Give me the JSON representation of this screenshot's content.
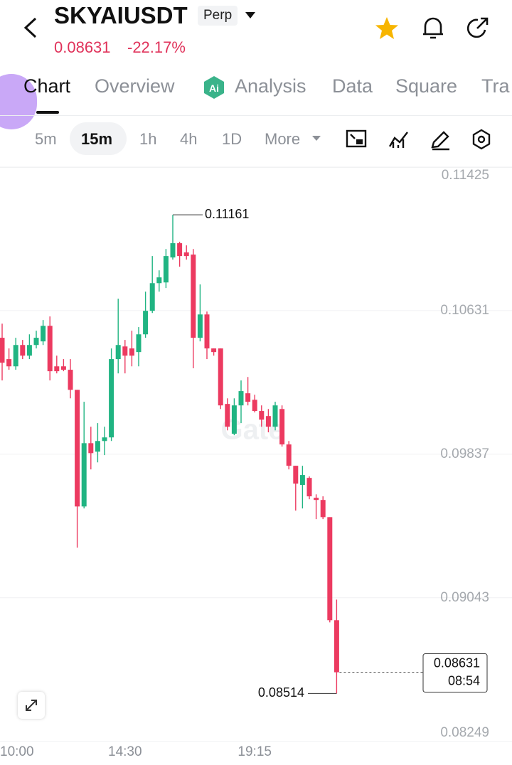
{
  "header": {
    "symbol": "SKYAIUSDT",
    "badge": "Perp",
    "price": "0.08631",
    "change": "-22.17%"
  },
  "tabs": [
    "Chart",
    "Overview",
    "Analysis",
    "Data",
    "Square",
    "Tra"
  ],
  "intervals": [
    "5m",
    "15m",
    "1h",
    "4h",
    "1D",
    "More"
  ],
  "watermark": "Gate",
  "chart_data": {
    "type": "candlestick",
    "categories": [
      "10:00",
      null,
      null,
      null,
      null,
      null,
      null,
      null,
      null,
      null,
      null,
      null,
      null,
      null,
      null,
      null,
      null,
      null,
      "14:30",
      null,
      null,
      null,
      null,
      null,
      null,
      null,
      null,
      null,
      null,
      null,
      null,
      null,
      null,
      null,
      null,
      null,
      null,
      "19:15",
      null,
      null,
      null,
      null,
      null,
      null,
      null,
      null,
      null,
      null,
      null,
      null
    ],
    "open": [
      0.10481,
      0.10363,
      0.10323,
      0.10441,
      0.10382,
      0.10441,
      0.10461,
      0.10547,
      0.10323,
      0.10323,
      0.10304,
      0.10193,
      0.09548,
      0.09898,
      0.09851,
      0.0991,
      0.0993,
      0.10363,
      0.10433,
      0.10422,
      0.10402,
      0.105,
      0.1063,
      0.10783,
      0.10787,
      0.10925,
      0.11004,
      0.10953,
      0.10941,
      0.10481,
      0.1061,
      0.10422,
      0.10422,
      0.10115,
      0.0995,
      0.10107,
      0.10174,
      0.10138,
      0.10076,
      0.10048,
      0.09989,
      0.10087,
      0.09891,
      0.09773,
      0.09667,
      0.09706,
      0.09596,
      0.09584,
      0.09489,
      0.08919
    ],
    "high": [
      0.10559,
      0.10422,
      0.10481,
      0.10469,
      0.105,
      0.1052,
      0.10579,
      0.10599,
      0.10382,
      0.10363,
      0.10363,
      0.10193,
      0.10127,
      0.09989,
      0.10009,
      0.09989,
      0.10422,
      0.10697,
      0.10469,
      0.1052,
      0.1054,
      0.10736,
      0.10933,
      0.10854,
      0.10972,
      0.11161,
      0.11012,
      0.10992,
      0.10972,
      0.10776,
      0.10626,
      0.10422,
      0.10422,
      0.10146,
      0.10146,
      0.10245,
      0.10264,
      0.10166,
      0.10107,
      0.10087,
      0.10127,
      0.10107,
      0.0991,
      0.09773,
      0.09773,
      0.09714,
      0.09615,
      0.09604,
      0.09489,
      0.09033
    ],
    "low": [
      0.10245,
      0.10304,
      0.10304,
      0.10363,
      0.10363,
      0.10422,
      0.10441,
      0.10245,
      0.10284,
      0.10296,
      0.10146,
      0.0932,
      0.09537,
      0.09753,
      0.09792,
      0.09832,
      0.0991,
      0.10284,
      0.10284,
      0.10323,
      0.10323,
      0.10481,
      0.10618,
      0.10736,
      0.10756,
      0.10913,
      0.10874,
      0.10913,
      0.10312,
      0.10461,
      0.10363,
      0.10382,
      0.10087,
      0.09969,
      0.09942,
      0.10009,
      0.10107,
      0.10068,
      0.09989,
      0.09958,
      0.09969,
      0.09879,
      0.09753,
      0.09525,
      0.09537,
      0.09588,
      0.09478,
      0.09478,
      0.08907,
      0.08514
    ],
    "close": [
      0.10343,
      0.10323,
      0.10441,
      0.10382,
      0.10441,
      0.10481,
      0.10547,
      0.10296,
      0.10296,
      0.10304,
      0.10193,
      0.09548,
      0.09898,
      0.09843,
      0.0991,
      0.0993,
      0.10363,
      0.10441,
      0.10382,
      0.10382,
      0.105,
      0.1063,
      0.10783,
      0.10815,
      0.10933,
      0.11004,
      0.10933,
      0.10933,
      0.10481,
      0.1061,
      0.10422,
      0.10402,
      0.10107,
      0.09989,
      0.10107,
      0.10186,
      0.10127,
      0.10076,
      0.10028,
      0.09989,
      0.10107,
      0.09891,
      0.09773,
      0.09674,
      0.09722,
      0.09604,
      0.09584,
      0.09489,
      0.08919,
      0.08631
    ],
    "up_color": "#20b482",
    "down_color": "#ec3a60",
    "ylim": [
      0.0824,
      0.11425
    ],
    "yticks": [
      0.11425,
      0.10631,
      0.09837,
      0.09043,
      0.08249
    ],
    "grid": true,
    "annotations": {
      "high": 0.11161,
      "low": 0.08514,
      "last_price": 0.08631,
      "countdown": "08:54"
    }
  }
}
